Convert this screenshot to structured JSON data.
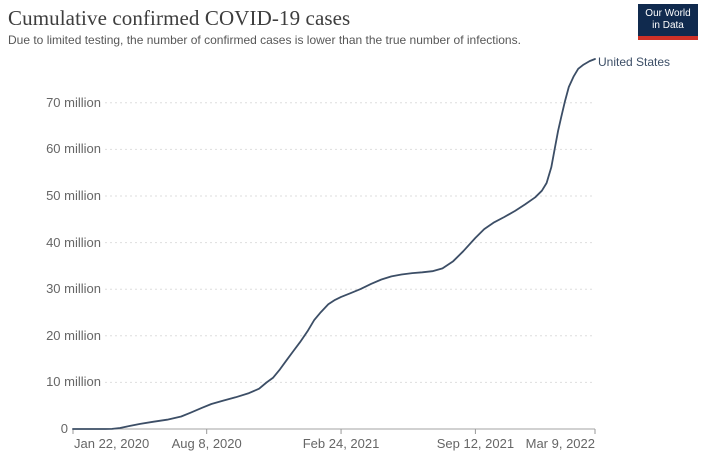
{
  "header": {
    "title": "Cumulative confirmed COVID-19 cases",
    "subtitle": "Due to limited testing, the number of confirmed cases is lower than the true number of infections."
  },
  "logo": {
    "line1": "Our World",
    "line2": "in Data",
    "bg_color": "#102a4e",
    "accent_color": "#cf3127",
    "text_color": "#ffffff"
  },
  "chart_data": {
    "type": "line",
    "title": "Cumulative confirmed COVID-19 cases",
    "subtitle": "Due to limited testing, the number of confirmed cases is lower than the true number of infections.",
    "legend_position": "right-of-line-end",
    "grid": true,
    "colors": {
      "line": "#3C4E66",
      "gridline": "#dedede",
      "axis_line": "#a3a3a3",
      "tick": "#999999",
      "tick_text": "#666666"
    },
    "x_axis": {
      "start_date": "2020-01-22",
      "end_date": "2022-03-09",
      "ticks": [
        {
          "label": "Jan 22, 2020",
          "date": "2020-01-22"
        },
        {
          "label": "Aug 8, 2020",
          "date": "2020-08-08"
        },
        {
          "label": "Feb 24, 2021",
          "date": "2021-02-24"
        },
        {
          "label": "Sep 12, 2021",
          "date": "2021-09-12"
        },
        {
          "label": "Mar 9, 2022",
          "date": "2022-03-09"
        }
      ]
    },
    "y_axis": {
      "unit": "million",
      "tick_values_million": [
        0,
        10,
        20,
        30,
        40,
        50,
        60,
        70
      ],
      "tick_labels": [
        "0",
        "10 million",
        "20 million",
        "30 million",
        "40 million",
        "50 million",
        "60 million",
        "70 million"
      ],
      "range_shown_million": [
        0,
        79.4
      ]
    },
    "series": [
      {
        "name": "United States",
        "color": "#3C4E66",
        "unit": "million cases",
        "points": [
          [
            "2020-01-22",
            0.0
          ],
          [
            "2020-02-15",
            2e-05
          ],
          [
            "2020-03-01",
            7e-05
          ],
          [
            "2020-03-10",
            0.001
          ],
          [
            "2020-03-20",
            0.019
          ],
          [
            "2020-04-01",
            0.22
          ],
          [
            "2020-04-15",
            0.64
          ],
          [
            "2020-05-01",
            1.1
          ],
          [
            "2020-05-20",
            1.55
          ],
          [
            "2020-06-10",
            2.0
          ],
          [
            "2020-07-01",
            2.68
          ],
          [
            "2020-07-15",
            3.5
          ],
          [
            "2020-08-01",
            4.56
          ],
          [
            "2020-08-15",
            5.36
          ],
          [
            "2020-09-01",
            6.07
          ],
          [
            "2020-09-20",
            6.8
          ],
          [
            "2020-10-10",
            7.7
          ],
          [
            "2020-10-25",
            8.64
          ],
          [
            "2020-11-05",
            9.97
          ],
          [
            "2020-11-15",
            11.04
          ],
          [
            "2020-11-25",
            12.78
          ],
          [
            "2020-12-05",
            14.76
          ],
          [
            "2020-12-15",
            16.74
          ],
          [
            "2020-12-25",
            18.65
          ],
          [
            "2021-01-05",
            20.96
          ],
          [
            "2021-01-15",
            23.37
          ],
          [
            "2021-01-25",
            25.08
          ],
          [
            "2021-02-05",
            26.76
          ],
          [
            "2021-02-15",
            27.7
          ],
          [
            "2021-02-24",
            28.35
          ],
          [
            "2021-03-10",
            29.15
          ],
          [
            "2021-03-25",
            30.02
          ],
          [
            "2021-04-10",
            31.15
          ],
          [
            "2021-04-25",
            32.08
          ],
          [
            "2021-05-10",
            32.75
          ],
          [
            "2021-05-25",
            33.15
          ],
          [
            "2021-06-10",
            33.46
          ],
          [
            "2021-06-25",
            33.62
          ],
          [
            "2021-07-10",
            33.86
          ],
          [
            "2021-07-25",
            34.46
          ],
          [
            "2021-08-10",
            36.0
          ],
          [
            "2021-08-25",
            38.15
          ],
          [
            "2021-09-12",
            41.0
          ],
          [
            "2021-09-25",
            42.89
          ],
          [
            "2021-10-10",
            44.35
          ],
          [
            "2021-10-25",
            45.5
          ],
          [
            "2021-11-10",
            46.81
          ],
          [
            "2021-11-25",
            48.2
          ],
          [
            "2021-12-10",
            49.72
          ],
          [
            "2021-12-20",
            51.13
          ],
          [
            "2021-12-27",
            52.8
          ],
          [
            "2022-01-03",
            56.15
          ],
          [
            "2022-01-08",
            60.1
          ],
          [
            "2022-01-13",
            64.0
          ],
          [
            "2022-01-18",
            67.1
          ],
          [
            "2022-01-23",
            70.2
          ],
          [
            "2022-01-29",
            73.4
          ],
          [
            "2022-02-05",
            75.6
          ],
          [
            "2022-02-12",
            77.3
          ],
          [
            "2022-02-20",
            78.2
          ],
          [
            "2022-03-01",
            78.95
          ],
          [
            "2022-03-09",
            79.4
          ]
        ]
      }
    ]
  }
}
